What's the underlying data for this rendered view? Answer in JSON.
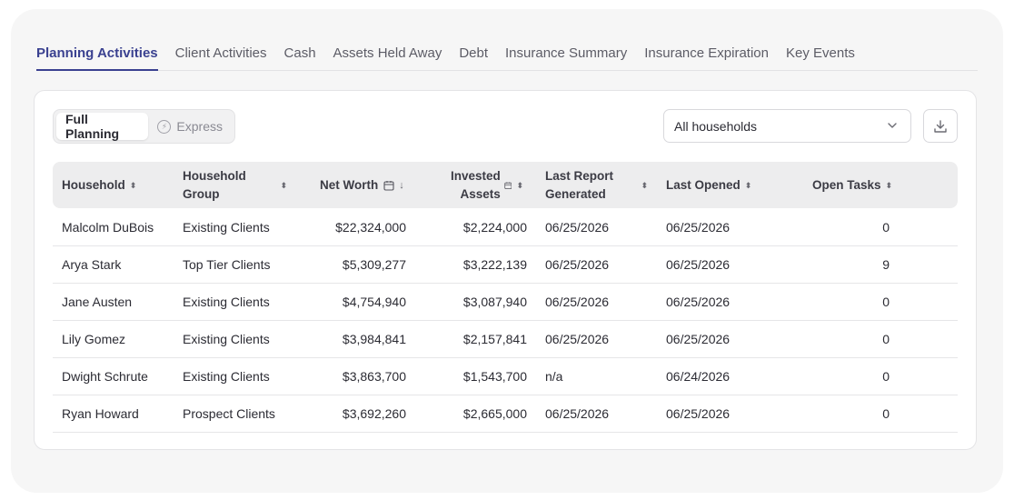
{
  "tabs": [
    {
      "label": "Planning Activities",
      "active": true
    },
    {
      "label": "Client Activities"
    },
    {
      "label": "Cash"
    },
    {
      "label": "Assets Held Away"
    },
    {
      "label": "Debt"
    },
    {
      "label": "Insurance Summary"
    },
    {
      "label": "Insurance Expiration"
    },
    {
      "label": "Key Events"
    }
  ],
  "mode": {
    "full": "Full Planning",
    "express": "Express",
    "express_icon": "lightning-icon"
  },
  "filter": {
    "value": "All households",
    "icon": "chevron-down-icon"
  },
  "download": {
    "icon": "download-icon"
  },
  "table": {
    "headers": {
      "household": "Household",
      "group_line1": "Household",
      "group_line2": "Group",
      "net_worth": "Net Worth",
      "invested_line1": "Invested",
      "invested_line2": "Assets",
      "report_line1": "Last Report",
      "report_line2": "Generated",
      "last_opened": "Last Opened",
      "open_tasks": "Open Tasks"
    },
    "rows": [
      {
        "household": "Malcolm DuBois",
        "group": "Existing Clients",
        "net_worth": "$22,324,000",
        "invested": "$2,224,000",
        "report": "06/25/2026",
        "opened": "06/25/2026",
        "tasks": "0"
      },
      {
        "household": "Arya Stark",
        "group": "Top Tier Clients",
        "net_worth": "$5,309,277",
        "invested": "$3,222,139",
        "report": "06/25/2026",
        "opened": "06/25/2026",
        "tasks": "9"
      },
      {
        "household": "Jane Austen",
        "group": "Existing Clients",
        "net_worth": "$4,754,940",
        "invested": "$3,087,940",
        "report": "06/25/2026",
        "opened": "06/25/2026",
        "tasks": "0"
      },
      {
        "household": "Lily Gomez",
        "group": "Existing Clients",
        "net_worth": "$3,984,841",
        "invested": "$2,157,841",
        "report": "06/25/2026",
        "opened": "06/25/2026",
        "tasks": "0"
      },
      {
        "household": "Dwight Schrute",
        "group": "Existing Clients",
        "net_worth": "$3,863,700",
        "invested": "$1,543,700",
        "report": "n/a",
        "opened": "06/24/2026",
        "tasks": "0"
      },
      {
        "household": "Ryan Howard",
        "group": "Prospect Clients",
        "net_worth": "$3,692,260",
        "invested": "$2,665,000",
        "report": "06/25/2026",
        "opened": "06/25/2026",
        "tasks": "0"
      }
    ]
  },
  "colors": {
    "accent": "#3a4190",
    "header_bg": "#ededee",
    "outer_bg": "#f6f6f6"
  }
}
